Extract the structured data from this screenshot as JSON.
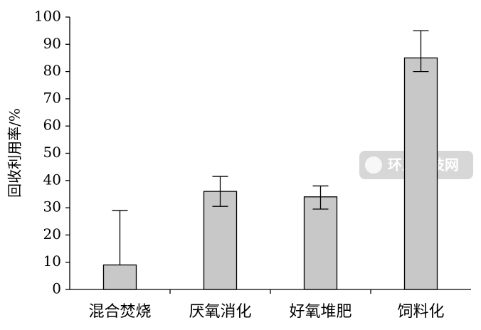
{
  "chart_data": {
    "type": "bar",
    "y_label": "回收利用率/%",
    "categories": [
      "混合焚烧",
      "厌氧消化",
      "好氧堆肥",
      "饲料化"
    ],
    "values": [
      9,
      36,
      34,
      85
    ],
    "error_upper": [
      20,
      5.5,
      4,
      10
    ],
    "error_lower": [
      0,
      5.5,
      4.5,
      5
    ],
    "color": "#c8c8c8",
    "ylim": [
      0,
      100
    ],
    "yticks": [
      0,
      10,
      20,
      30,
      40,
      50,
      60,
      70,
      80,
      90,
      100
    ],
    "watermark": "环卫科技网"
  }
}
